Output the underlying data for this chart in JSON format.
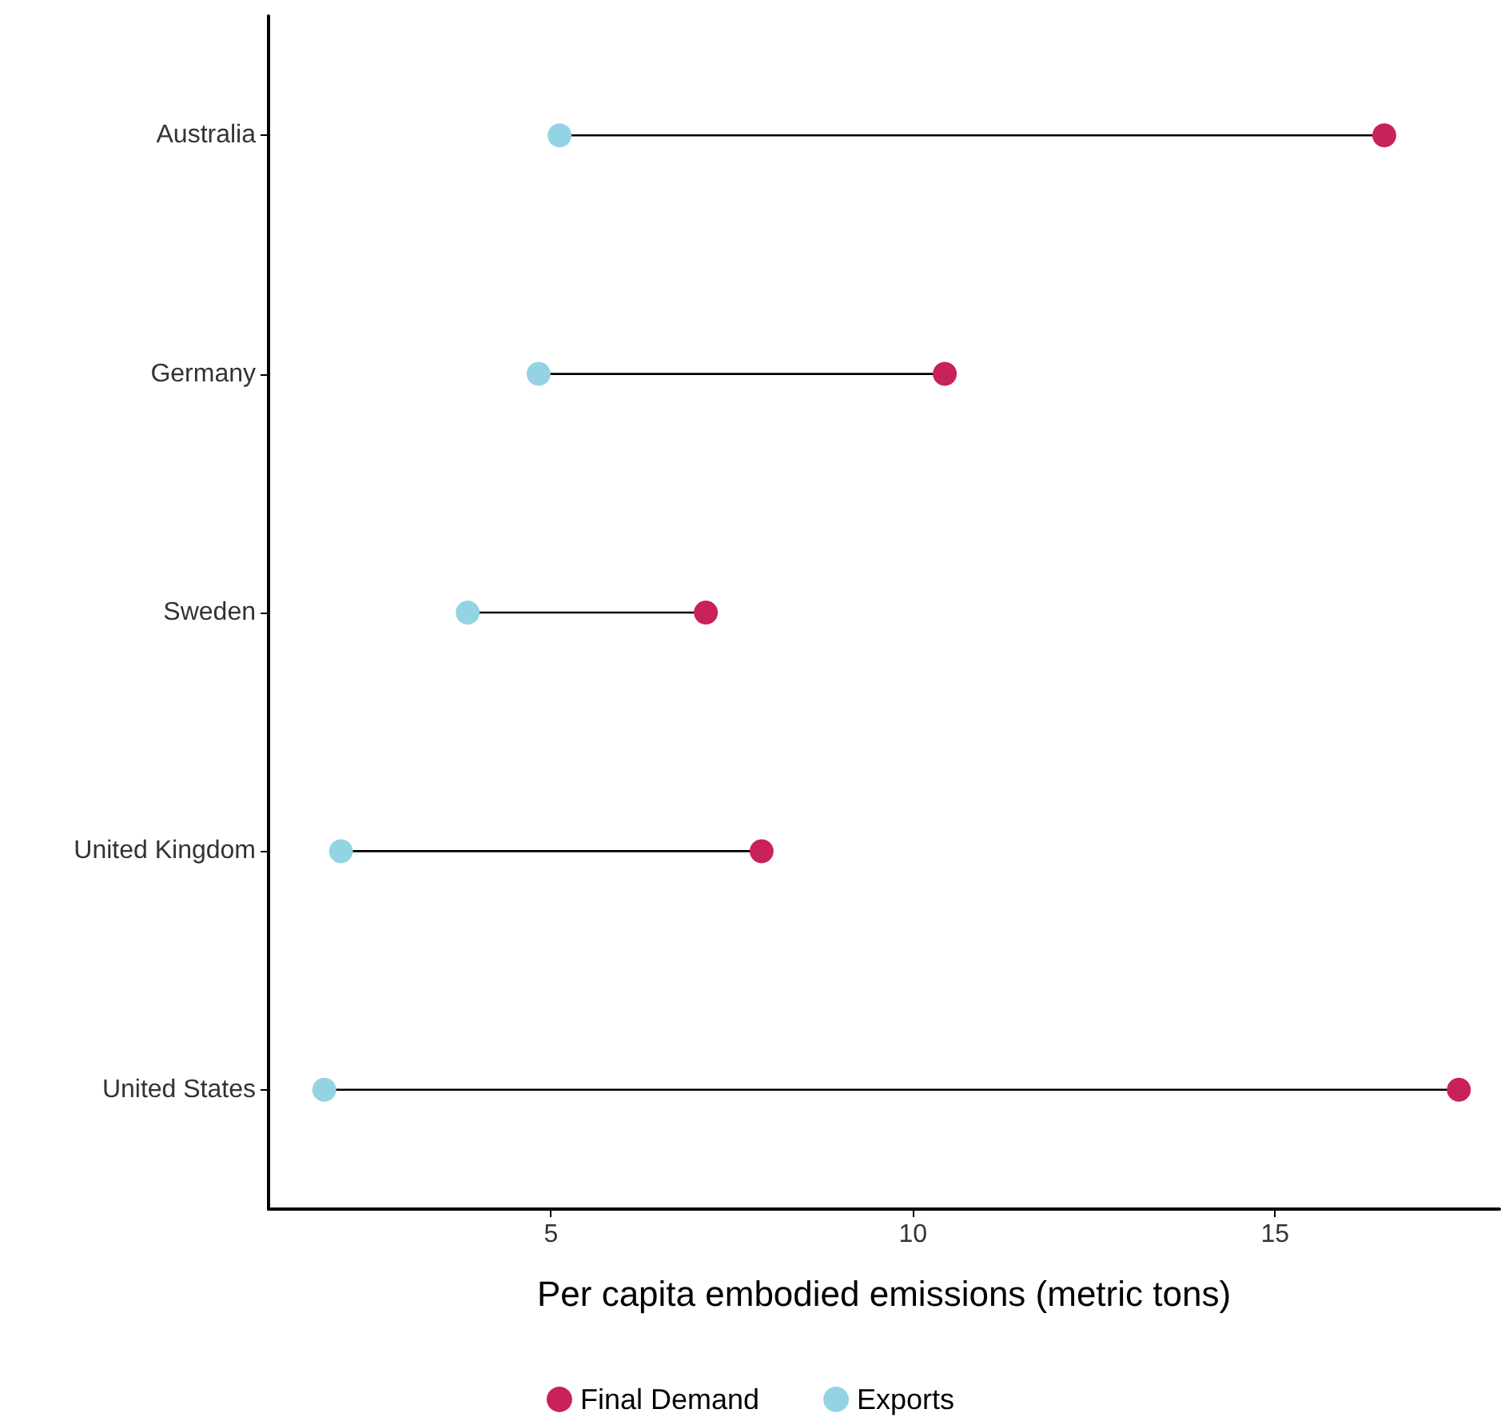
{
  "chart_data": {
    "type": "scatter",
    "orientation": "horizontal",
    "xlabel": "Per capita embodied emissions (metric tons)",
    "categories": [
      "Australia",
      "Germany",
      "Sweden",
      "United Kingdom",
      "United States"
    ],
    "series": [
      {
        "name": "Final Demand",
        "color": "#c9215a",
        "values": [
          16.51,
          10.44,
          7.14,
          7.91,
          17.54
        ]
      },
      {
        "name": "Exports",
        "color": "#94d3e3",
        "values": [
          5.12,
          4.83,
          3.85,
          2.1,
          1.87
        ]
      }
    ],
    "xlim": [
      1.1,
      18.1
    ],
    "xticks": [
      5,
      10,
      15
    ],
    "grid": false,
    "legend": "bottom",
    "marker": "circle"
  }
}
